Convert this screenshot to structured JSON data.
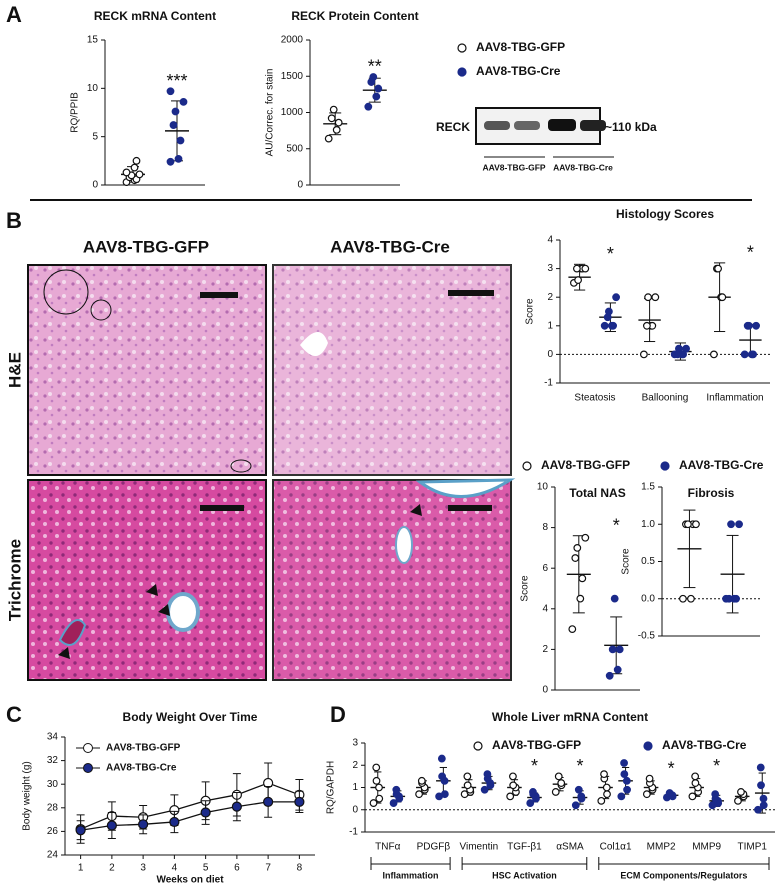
{
  "panels": [
    "A",
    "B",
    "C",
    "D"
  ],
  "blot": {
    "label": "RECK",
    "size": "~110 kDa",
    "lanes": [
      "AAV8-TBG-GFP",
      "AAV8-TBG-Cre"
    ]
  },
  "micrographs": {
    "columns": [
      "AAV8-TBG-GFP",
      "AAV8-TBG-Cre"
    ],
    "rows": [
      "H&E",
      "Trichrome"
    ]
  },
  "chart_data": [
    {
      "type": "dotplot",
      "title": "RECK mRNA Content",
      "y_label": "RQ/PPIB",
      "ylim": [
        0,
        15
      ],
      "yticks": [
        0,
        5,
        10,
        15
      ],
      "categories": [
        null
      ],
      "significance": [
        "***"
      ],
      "series": [
        {
          "name": "AAV8-TBG-GFP",
          "color": "#ffffff",
          "points": [
            [
              0.3,
              0.5,
              0.6,
              0.8,
              1.0,
              1.1,
              1.3,
              1.8,
              2.5
            ]
          ],
          "mean": [
            1.1
          ],
          "sd": [
            0.8
          ]
        },
        {
          "name": "AAV8-TBG-Cre",
          "color": "#1b2a8a",
          "points": [
            [
              2.4,
              2.7,
              4.6,
              6.2,
              7.6,
              8.6,
              9.7
            ]
          ],
          "mean": [
            5.6
          ],
          "sd": [
            3.1
          ]
        }
      ]
    },
    {
      "type": "dotplot",
      "title": "RECK Protein Content",
      "y_label": "AU/Correc. for stain",
      "ylim": [
        0,
        2000
      ],
      "yticks": [
        0,
        500,
        1000,
        1500,
        2000
      ],
      "categories": [
        null
      ],
      "significance": [
        "**"
      ],
      "legend": true,
      "series": [
        {
          "name": "AAV8-TBG-GFP",
          "color": "#ffffff",
          "points": [
            [
              640,
              760,
              860,
              920,
              1040
            ]
          ],
          "mean": [
            844
          ],
          "sd": [
            150
          ]
        },
        {
          "name": "AAV8-TBG-Cre",
          "color": "#1b2a8a",
          "points": [
            [
              1080,
              1220,
              1330,
              1420,
              1490
            ]
          ],
          "mean": [
            1308
          ],
          "sd": [
            165
          ]
        }
      ]
    },
    {
      "type": "dotplot",
      "title": "Histology Scores",
      "y_label": "Score",
      "ylim": [
        -1,
        4
      ],
      "yticks": [
        -1,
        0,
        1,
        2,
        3,
        4
      ],
      "zero_line": true,
      "categories": [
        "Steatosis",
        "Ballooning",
        "Inflammation"
      ],
      "significance": [
        "*",
        null,
        "*"
      ],
      "legend": true,
      "series": [
        {
          "name": "AAV8-TBG-GFP",
          "color": "#ffffff",
          "points": [
            [
              2.5,
              3,
              3,
              3,
              2.6,
              3
            ],
            [
              0,
              1,
              1,
              1,
              2,
              2
            ],
            [
              0,
              2,
              2,
              3,
              3
            ]
          ],
          "mean": [
            2.7,
            1.2,
            2.0
          ],
          "sd": [
            0.45,
            0.75,
            1.2
          ]
        },
        {
          "name": "AAV8-TBG-Cre",
          "color": "#1b2a8a",
          "points": [
            [
              1,
              1,
              1,
              1.3,
              1.5,
              2
            ],
            [
              0,
              0,
              0,
              0,
              0.2,
              0.2
            ],
            [
              0,
              0,
              0,
              1,
              1,
              1
            ]
          ],
          "mean": [
            1.3,
            0.1,
            0.5
          ],
          "sd": [
            0.5,
            0.3,
            0.55
          ]
        }
      ]
    },
    {
      "type": "dotplot",
      "title": "Total NAS",
      "y_label": "Score",
      "ylim": [
        0,
        10
      ],
      "yticks": [
        0,
        2,
        4,
        6,
        8,
        10
      ],
      "categories": [
        null
      ],
      "significance": [
        "*"
      ],
      "series": [
        {
          "name": "AAV8-TBG-GFP",
          "color": "#ffffff",
          "points": [
            [
              3,
              4.5,
              5.5,
              6.5,
              7,
              7.5
            ]
          ],
          "mean": [
            5.7
          ],
          "sd": [
            1.9
          ]
        },
        {
          "name": "AAV8-TBG-Cre",
          "color": "#1b2a8a",
          "points": [
            [
              0.7,
              1,
              2,
              2,
              4.5
            ]
          ],
          "mean": [
            2.2
          ],
          "sd": [
            1.4
          ]
        }
      ]
    },
    {
      "type": "dotplot",
      "title": "Fibrosis",
      "y_label": "Score",
      "ylim": [
        -0.5,
        1.5
      ],
      "zero_line": true,
      "yticks": [
        {
          "value": -0.5,
          "label": "-0.5"
        },
        {
          "value": 0,
          "label": "0.0"
        },
        {
          "value": 0.5,
          "label": "0.5"
        },
        {
          "value": 1,
          "label": "1.0"
        },
        {
          "value": 1.5,
          "label": "1.5"
        }
      ],
      "categories": [
        null
      ],
      "series": [
        {
          "name": "AAV8-TBG-GFP",
          "color": "#ffffff",
          "points": [
            [
              0,
              0,
              1,
              1,
              1,
              1
            ]
          ],
          "mean": [
            0.67
          ],
          "sd": [
            0.52
          ]
        },
        {
          "name": "AAV8-TBG-Cre",
          "color": "#1b2a8a",
          "points": [
            [
              0,
              0,
              0,
              0,
              1,
              1
            ]
          ],
          "mean": [
            0.33
          ],
          "sd": [
            0.52
          ]
        }
      ]
    },
    {
      "type": "line",
      "title": "Body Weight Over  Time",
      "x_label": "Weeks on diet",
      "y_label": "Body weight (g)",
      "x": [
        1,
        2,
        3,
        4,
        5,
        6,
        7,
        8
      ],
      "xlim": [
        0.5,
        8.5
      ],
      "xticks": [
        1,
        2,
        3,
        4,
        5,
        6,
        7,
        8
      ],
      "ylim": [
        24,
        34
      ],
      "yticks": [
        24,
        26,
        28,
        30,
        32,
        34
      ],
      "legend": true,
      "series": [
        {
          "name": "AAV8-TBG-GFP",
          "color": "#ffffff",
          "values": [
            26.2,
            27.3,
            27.2,
            27.8,
            28.6,
            29.1,
            30.1,
            29.1
          ],
          "errors": [
            1.2,
            1.2,
            1.0,
            1.3,
            1.6,
            1.8,
            1.7,
            1.3
          ]
        },
        {
          "name": "AAV8-TBG-Cre",
          "color": "#1b2a8a",
          "values": [
            26.1,
            26.5,
            26.6,
            26.8,
            27.6,
            28.1,
            28.5,
            28.5
          ],
          "errors": [
            0.8,
            1.1,
            0.8,
            0.9,
            1.0,
            1.2,
            1.3,
            0.9
          ]
        }
      ]
    },
    {
      "type": "dotplot",
      "title": "Whole Liver mRNA Content",
      "y_label": "RQ/GAPDH",
      "ylim": [
        -1,
        3
      ],
      "yticks": [
        -1,
        0,
        1,
        2,
        3
      ],
      "zero_line": true,
      "legend": true,
      "categories": [
        "TNFα",
        "PDGFβ",
        "Vimentin",
        "TGF-β1",
        "αSMA",
        "Col1α1",
        "MMP2",
        "MMP9",
        "TIMP1"
      ],
      "significance": [
        null,
        null,
        null,
        "*",
        "*",
        null,
        "*",
        "*",
        null
      ],
      "groups": [
        "Inflammation",
        "HSC Activation",
        "ECM Components/Regulators"
      ],
      "series": [
        {
          "name": "AAV8-TBG-GFP",
          "color": "#ffffff",
          "points": [
            [
              0.3,
              0.5,
              1.0,
              1.3,
              1.9
            ],
            [
              0.7,
              0.9,
              1.0,
              1.2,
              1.3
            ],
            [
              0.7,
              0.8,
              0.9,
              1.1,
              1.5
            ],
            [
              0.6,
              0.8,
              1.0,
              1.1,
              1.5
            ],
            [
              0.8,
              1.1,
              1.2,
              1.5
            ],
            [
              0.4,
              0.7,
              1.0,
              1.4,
              1.6
            ],
            [
              0.7,
              0.9,
              1.0,
              1.2,
              1.4
            ],
            [
              0.6,
              0.8,
              1.0,
              1.2,
              1.5
            ],
            [
              0.4,
              0.6,
              0.7,
              0.8
            ]
          ],
          "mean": [
            1.0,
            1.0,
            1.0,
            1.0,
            1.15,
            1.0,
            1.0,
            1.0,
            0.6
          ],
          "sd": [
            0.7,
            0.3,
            0.35,
            0.35,
            0.3,
            0.5,
            0.3,
            0.4,
            0.2
          ]
        },
        {
          "name": "AAV8-TBG-Cre",
          "color": "#1b2a8a",
          "points": [
            [
              0.3,
              0.5,
              0.6,
              0.7,
              0.9
            ],
            [
              0.6,
              0.7,
              1.3,
              1.5,
              2.3
            ],
            [
              0.9,
              1.1,
              1.2,
              1.4,
              1.6
            ],
            [
              0.3,
              0.5,
              0.6,
              0.7,
              0.8
            ],
            [
              0.2,
              0.5,
              0.6,
              0.9
            ],
            [
              0.6,
              0.9,
              1.3,
              1.6,
              2.1
            ],
            [
              0.55,
              0.6,
              0.65,
              0.7,
              0.75
            ],
            [
              0.2,
              0.3,
              0.4,
              0.5,
              0.7
            ],
            [
              0,
              0.2,
              0.5,
              1.1,
              1.9
            ]
          ],
          "mean": [
            0.6,
            1.3,
            1.2,
            0.55,
            0.55,
            1.3,
            0.65,
            0.4,
            0.75
          ],
          "sd": [
            0.25,
            0.6,
            0.3,
            0.2,
            0.3,
            0.6,
            0.1,
            0.25,
            0.9
          ]
        }
      ]
    }
  ]
}
